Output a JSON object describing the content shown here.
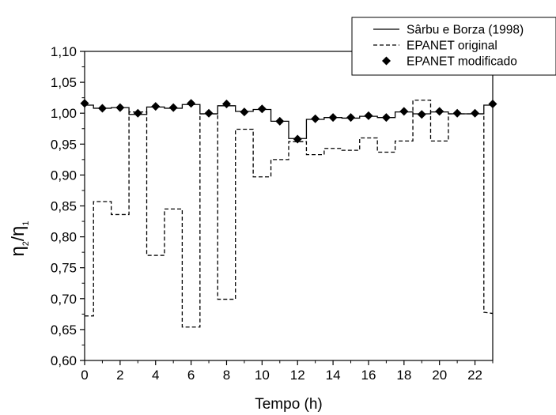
{
  "chart_data": {
    "type": "line",
    "xlabel": "Tempo (h)",
    "ylabel_main": "η",
    "ylabel_sub1": "2",
    "ylabel_slash": "/",
    "ylabel_sub2": "1",
    "xlim": [
      0,
      23
    ],
    "ylim": [
      0.6,
      1.1
    ],
    "x_ticks": [
      0,
      2,
      4,
      6,
      8,
      10,
      12,
      14,
      16,
      18,
      20,
      22
    ],
    "x_tick_labels": [
      "0",
      "2",
      "4",
      "6",
      "8",
      "10",
      "12",
      "14",
      "16",
      "18",
      "20",
      "22"
    ],
    "y_ticks": [
      0.6,
      0.65,
      0.7,
      0.75,
      0.8,
      0.85,
      0.9,
      0.95,
      1.0,
      1.05,
      1.1
    ],
    "y_tick_labels": [
      "0,60",
      "0,65",
      "0,70",
      "0,75",
      "0,80",
      "0,85",
      "0,90",
      "0,95",
      "1,00",
      "1,05",
      "1,10"
    ],
    "grid": false,
    "legend_position": "top-right",
    "series": [
      {
        "name": "Sârbu e Borza (1998)",
        "style": "solid",
        "marker": "none",
        "color": "#000000",
        "points": [
          [
            0,
            1.013
          ],
          [
            0.5,
            1.013
          ],
          [
            0.5,
            1.008
          ],
          [
            1.5,
            1.008
          ],
          [
            1.5,
            1.009
          ],
          [
            2.5,
            1.009
          ],
          [
            2.5,
            0.998
          ],
          [
            3.5,
            0.998
          ],
          [
            3.5,
            1.01
          ],
          [
            4.5,
            1.01
          ],
          [
            4.5,
            1.008
          ],
          [
            5.5,
            1.008
          ],
          [
            5.5,
            1.014
          ],
          [
            6.5,
            1.014
          ],
          [
            6.5,
            0.999
          ],
          [
            7.5,
            0.999
          ],
          [
            7.5,
            1.012
          ],
          [
            8.5,
            1.012
          ],
          [
            8.5,
            1.003
          ],
          [
            9.5,
            1.003
          ],
          [
            9.5,
            1.006
          ],
          [
            10.5,
            1.006
          ],
          [
            10.5,
            0.987
          ],
          [
            11.5,
            0.987
          ],
          [
            11.5,
            0.959
          ],
          [
            12.5,
            0.959
          ],
          [
            12.5,
            0.99
          ],
          [
            13.5,
            0.99
          ],
          [
            13.5,
            0.993
          ],
          [
            14.5,
            0.993
          ],
          [
            14.5,
            0.992
          ],
          [
            15.5,
            0.992
          ],
          [
            15.5,
            0.995
          ],
          [
            16.5,
            0.995
          ],
          [
            16.5,
            0.993
          ],
          [
            17.5,
            0.993
          ],
          [
            17.5,
            1.002
          ],
          [
            18.5,
            1.002
          ],
          [
            18.5,
            0.999
          ],
          [
            19.5,
            0.999
          ],
          [
            19.5,
            1.002
          ],
          [
            20.5,
            1.002
          ],
          [
            20.5,
            0.999
          ],
          [
            22.5,
            0.999
          ],
          [
            22.5,
            1.013
          ],
          [
            23,
            1.013
          ]
        ]
      },
      {
        "name": "EPANET original",
        "style": "dashed",
        "marker": "none",
        "color": "#000000",
        "points": [
          [
            0,
            0.672
          ],
          [
            0.5,
            0.672
          ],
          [
            0.5,
            0.857
          ],
          [
            1.5,
            0.857
          ],
          [
            1.5,
            0.836
          ],
          [
            2.5,
            0.836
          ],
          [
            2.5,
            1.002
          ],
          [
            3.5,
            1.002
          ],
          [
            3.5,
            0.77
          ],
          [
            4.5,
            0.77
          ],
          [
            4.5,
            0.845
          ],
          [
            5.5,
            0.845
          ],
          [
            5.5,
            0.654
          ],
          [
            6.5,
            0.654
          ],
          [
            6.5,
            0.999
          ],
          [
            7.5,
            0.999
          ],
          [
            7.5,
            0.699
          ],
          [
            8.5,
            0.699
          ],
          [
            8.5,
            0.974
          ],
          [
            9.5,
            0.974
          ],
          [
            9.5,
            0.897
          ],
          [
            10.5,
            0.897
          ],
          [
            10.5,
            0.925
          ],
          [
            11.5,
            0.925
          ],
          [
            11.5,
            0.954
          ],
          [
            12.5,
            0.954
          ],
          [
            12.5,
            0.933
          ],
          [
            13.5,
            0.933
          ],
          [
            13.5,
            0.943
          ],
          [
            14.5,
            0.943
          ],
          [
            14.5,
            0.94
          ],
          [
            15.5,
            0.94
          ],
          [
            15.5,
            0.96
          ],
          [
            16.5,
            0.96
          ],
          [
            16.5,
            0.937
          ],
          [
            17.5,
            0.937
          ],
          [
            17.5,
            0.955
          ],
          [
            18.5,
            0.955
          ],
          [
            18.5,
            1.021
          ],
          [
            19.5,
            1.021
          ],
          [
            19.5,
            0.955
          ],
          [
            20.5,
            0.955
          ],
          [
            20.5,
            0.999
          ],
          [
            22.5,
            0.999
          ],
          [
            22.5,
            0.678
          ],
          [
            23,
            0.676
          ]
        ]
      },
      {
        "name": "EPANET modificado",
        "style": "none",
        "marker": "diamond",
        "color": "#000000",
        "x": [
          0,
          1,
          2,
          3,
          4,
          5,
          6,
          7,
          8,
          9,
          10,
          11,
          12,
          13,
          14,
          15,
          16,
          17,
          18,
          19,
          20,
          21,
          22,
          23
        ],
        "values": [
          1.016,
          1.008,
          1.009,
          1.0,
          1.011,
          1.009,
          1.016,
          1.0,
          1.015,
          1.002,
          1.007,
          0.987,
          0.958,
          0.991,
          0.993,
          0.993,
          0.996,
          0.993,
          1.003,
          0.998,
          1.003,
          1.0,
          1.0,
          1.015
        ]
      }
    ]
  }
}
